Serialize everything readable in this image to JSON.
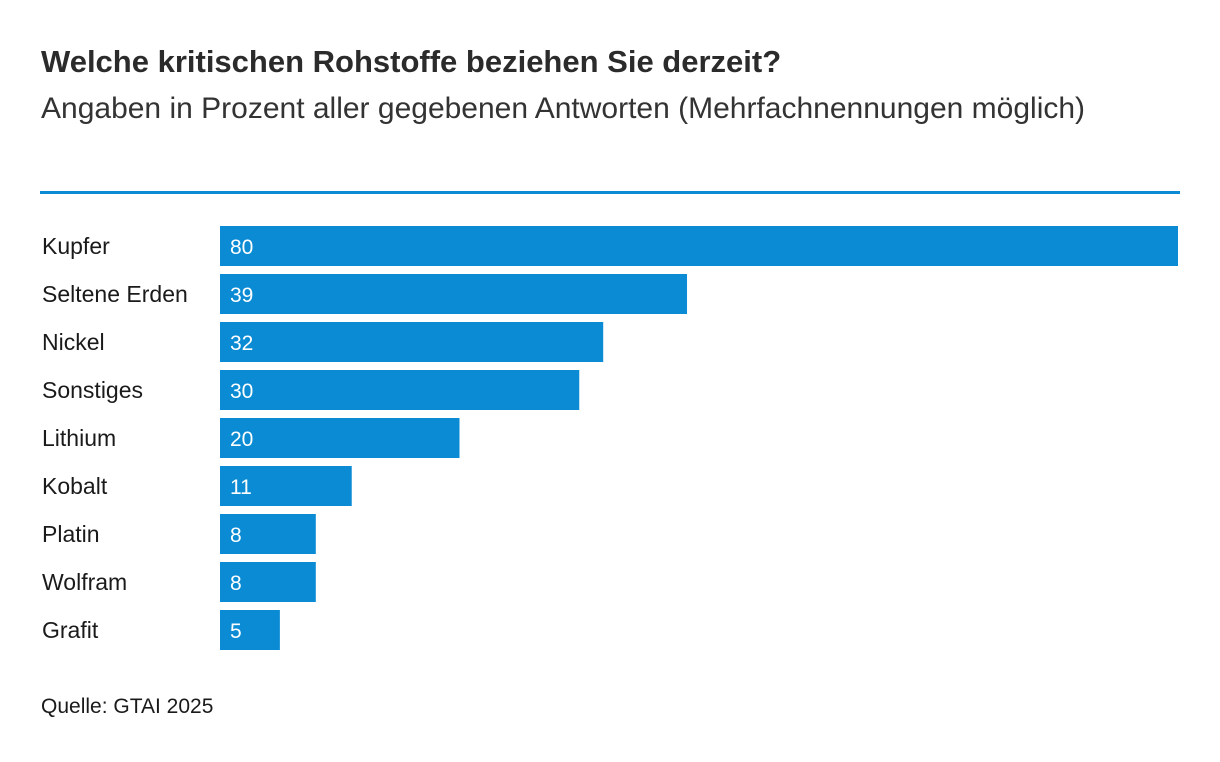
{
  "colors": {
    "bar": "#0a8bd4",
    "rule": "#0a8bd4"
  },
  "source": "Quelle: GTAI 2025",
  "chart_data": {
    "type": "bar",
    "orientation": "horizontal",
    "title": "Welche kritischen Rohstoffe beziehen Sie derzeit?",
    "subtitle": "Angaben in Prozent aller gegebenen Antworten (Mehrfachnennungen möglich)",
    "categories": [
      "Kupfer",
      "Seltene Erden",
      "Nickel",
      "Sonstiges",
      "Lithium",
      "Kobalt",
      "Platin",
      "Wolfram",
      "Grafit"
    ],
    "values": [
      80,
      39,
      32,
      30,
      20,
      11,
      8,
      8,
      5
    ],
    "value_labels": [
      "80",
      "39",
      "32",
      "30",
      "20",
      "11",
      "8",
      "8",
      "5"
    ],
    "xlabel": "",
    "ylabel": "",
    "xlim": [
      0,
      80
    ],
    "grid": false,
    "legend": "none"
  }
}
